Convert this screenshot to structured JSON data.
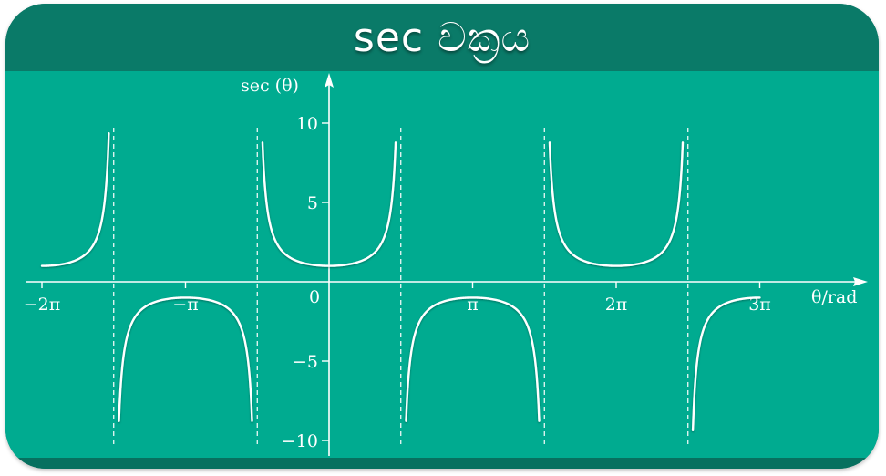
{
  "header": {
    "title": "sec වක්‍රය"
  },
  "colors": {
    "header_bg": "#0a7a68",
    "plot_bg": "#00ab90",
    "curve": "#ffffff",
    "axis": "#ffffff"
  },
  "chart_data": {
    "type": "line",
    "function": "sec",
    "title": "sec වක්‍රය",
    "xlabel": "θ/rad",
    "ylabel": "sec (θ)",
    "xlim": [
      -6.28318,
      9.42477
    ],
    "ylim": [
      -10,
      10
    ],
    "x_ticks": [
      {
        "value": -6.28318,
        "label": "−2π"
      },
      {
        "value": -3.14159,
        "label": "−π"
      },
      {
        "value": 3.14159,
        "label": "π"
      },
      {
        "value": 6.28318,
        "label": "2π"
      },
      {
        "value": 9.42477,
        "label": "3π"
      }
    ],
    "y_ticks": [
      {
        "value": 10,
        "label": "10"
      },
      {
        "value": 5,
        "label": "5"
      },
      {
        "value": -5,
        "label": "−5"
      },
      {
        "value": -10,
        "label": "−10"
      }
    ],
    "origin_label": "0",
    "asymptotes": [
      -4.71239,
      -1.5708,
      1.5708,
      4.71239,
      7.85398
    ],
    "grid": false,
    "legend": "none"
  }
}
